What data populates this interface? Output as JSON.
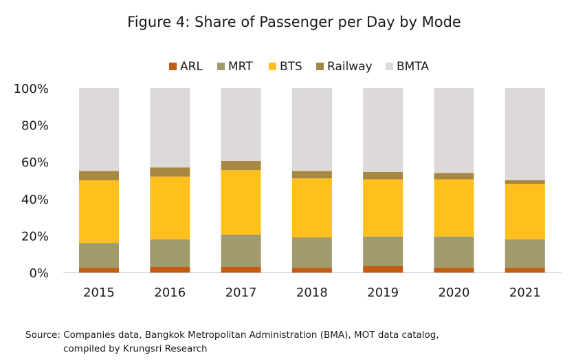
{
  "chart_data": {
    "type": "bar",
    "stacked": true,
    "title": "Figure 4: Share of Passenger per Day by Mode",
    "categories": [
      "2015",
      "2016",
      "2017",
      "2018",
      "2019",
      "2020",
      "2021"
    ],
    "ylim": [
      0,
      100
    ],
    "yticks": [
      "0%",
      "20%",
      "40%",
      "60%",
      "80%",
      "100%"
    ],
    "ytick_values": [
      0,
      20,
      40,
      60,
      80,
      100
    ],
    "legend_position": "top",
    "grid": false,
    "series": [
      {
        "name": "ARL",
        "color": "#C55A11",
        "values": [
          2.5,
          3,
          3,
          2.5,
          3.5,
          2.5,
          2.5
        ]
      },
      {
        "name": "MRT",
        "color": "#A09A6C",
        "values": [
          13.5,
          15,
          17.5,
          16.5,
          16,
          17,
          15.5
        ]
      },
      {
        "name": "BTS",
        "color": "#FFC01E",
        "values": [
          34,
          34,
          35,
          32,
          31,
          31,
          30
        ]
      },
      {
        "name": "Railway",
        "color": "#A88742",
        "values": [
          5,
          5,
          5,
          4,
          4,
          3.5,
          2
        ]
      },
      {
        "name": "BMTA",
        "color": "#DDD9D8",
        "values": [
          45,
          43,
          39.5,
          45,
          45.5,
          46,
          50
        ]
      }
    ],
    "source_lines": [
      "Source: Companies data, Bangkok Metropolitan Administration (BMA),  MOT data catalog,",
      "compiled by Krungsri Research"
    ]
  }
}
